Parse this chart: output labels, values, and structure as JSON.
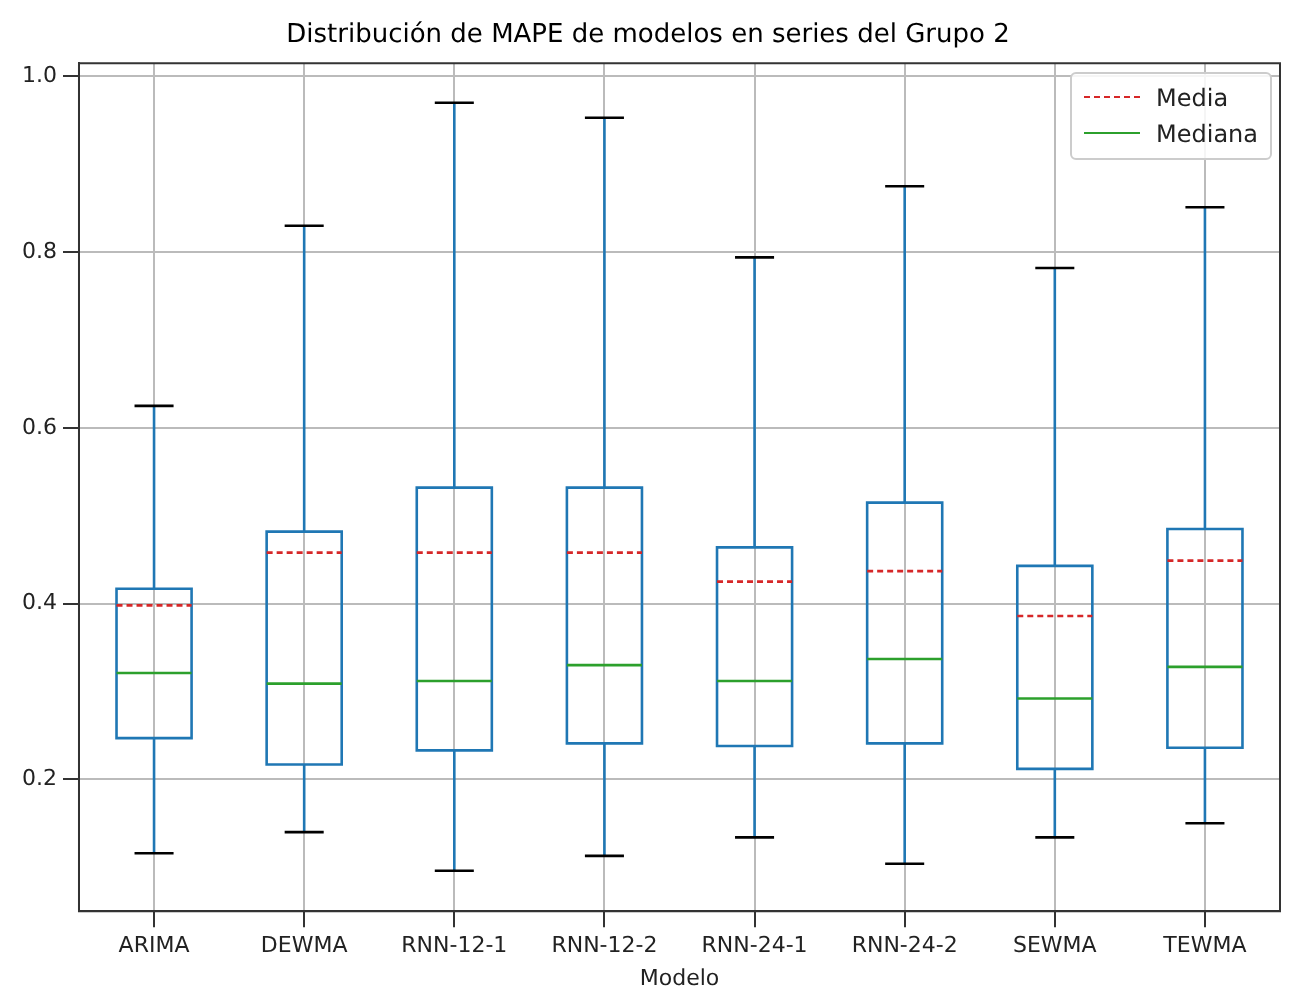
{
  "chart_data": {
    "type": "box",
    "title": "Distribución de MAPE de modelos en series del Grupo 2",
    "xlabel": "Modelo",
    "categories": [
      "ARIMA",
      "DEWMA",
      "RNN-12-1",
      "RNN-12-2",
      "RNN-24-1",
      "RNN-24-2",
      "SEWMA",
      "TEWMA"
    ],
    "series": [
      {
        "color": "#1f77b4",
        "boxes": [
          {
            "low": 0.116,
            "q1": 0.247,
            "median": 0.321,
            "q3": 0.417,
            "high": 0.625,
            "mean": 0.398
          },
          {
            "low": 0.14,
            "q1": 0.217,
            "median": 0.309,
            "q3": 0.482,
            "high": 0.83,
            "mean": 0.458
          },
          {
            "low": 0.096,
            "q1": 0.233,
            "median": 0.312,
            "q3": 0.532,
            "high": 0.97,
            "mean": 0.458
          },
          {
            "low": 0.113,
            "q1": 0.241,
            "median": 0.33,
            "q3": 0.532,
            "high": 0.953,
            "mean": 0.458
          },
          {
            "low": 0.134,
            "q1": 0.238,
            "median": 0.312,
            "q3": 0.464,
            "high": 0.794,
            "mean": 0.425
          },
          {
            "low": 0.104,
            "q1": 0.241,
            "median": 0.337,
            "q3": 0.515,
            "high": 0.875,
            "mean": 0.437
          },
          {
            "low": 0.134,
            "q1": 0.212,
            "median": 0.292,
            "q3": 0.443,
            "high": 0.782,
            "mean": 0.386
          },
          {
            "low": 0.15,
            "q1": 0.236,
            "median": 0.328,
            "q3": 0.485,
            "high": 0.851,
            "mean": 0.449
          }
        ]
      }
    ],
    "ylim": [
      0.05,
      1.015
    ],
    "yticks": [
      0.2,
      0.4,
      0.6,
      0.8,
      {
        "value": 1,
        "label": "1.0"
      }
    ],
    "grid": true,
    "annotations": [
      "Media",
      "Mediana"
    ]
  }
}
